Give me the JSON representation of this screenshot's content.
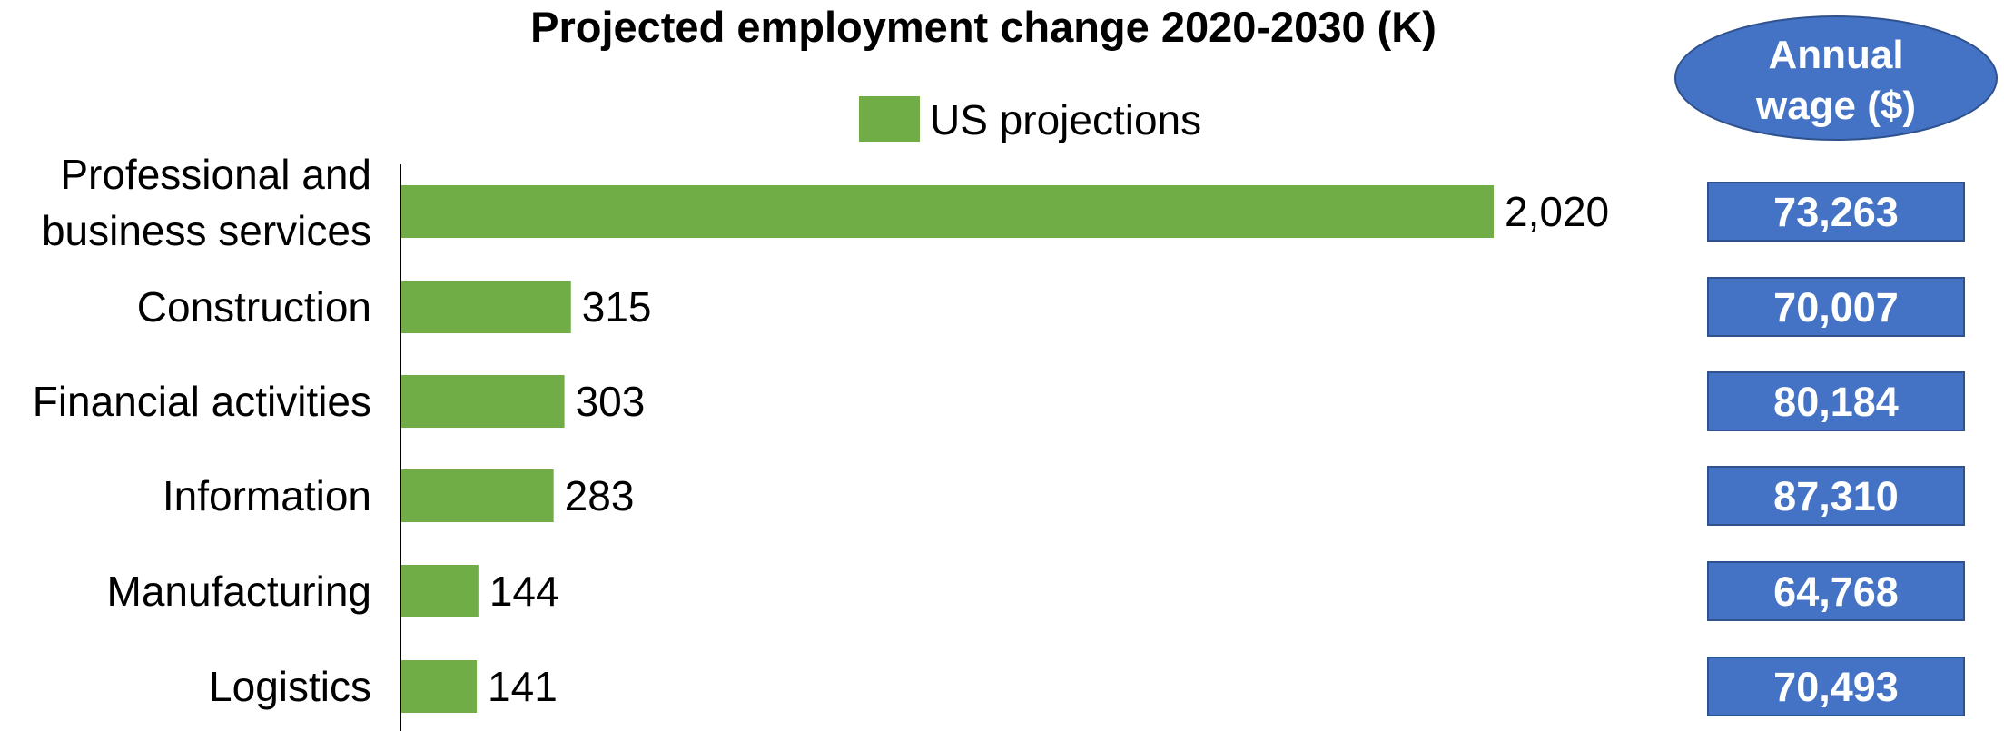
{
  "chart_data": {
    "type": "bar",
    "orientation": "horizontal",
    "title": "Projected employment change 2020-2030 (K)",
    "categories": [
      "Professional and business services",
      "Construction",
      "Financial activities",
      "Information",
      "Manufacturing",
      "Logistics"
    ],
    "category_lines": [
      [
        "Professional and",
        "business services"
      ],
      [
        "Construction"
      ],
      [
        "Financial activities"
      ],
      [
        "Information"
      ],
      [
        "Manufacturing"
      ],
      [
        "Logistics"
      ]
    ],
    "series": [
      {
        "name": "US projections",
        "color": "#70ad47",
        "values": [
          2020,
          315,
          303,
          283,
          144,
          141
        ],
        "value_labels": [
          "2,020",
          "315",
          "303",
          "283",
          "144",
          "141"
        ]
      }
    ],
    "xlim": [
      0,
      2020
    ],
    "grid": false,
    "legend": "top-center",
    "wage_panel": {
      "header_lines": [
        "Annual",
        "wage ($)"
      ],
      "color": "#4472c4",
      "border_color": "#2f528f",
      "values": [
        "73,263",
        "70,007",
        "80,184",
        "87,310",
        "64,768",
        "70,493"
      ]
    }
  }
}
